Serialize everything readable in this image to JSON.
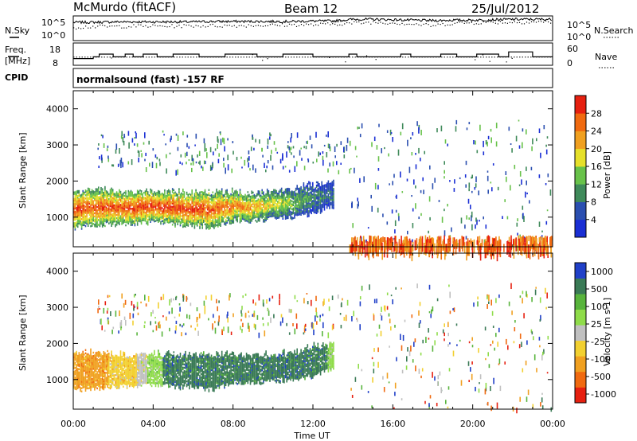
{
  "header": {
    "station": "McMurdo (fitACF)",
    "beam": "Beam 12",
    "date": "25/Jul/2012"
  },
  "top_panels": {
    "nsky_label": "N.Sky",
    "nsearch_label": "N.Search",
    "noise_ticks": [
      "10^5",
      "10^0"
    ],
    "freq_label_line1": "Freq.",
    "freq_label_line2": "[MHz]",
    "freq_ticks": [
      "18",
      "8"
    ],
    "nave_label": "Nave",
    "nave_ticks": [
      "60",
      "0"
    ],
    "cpid_label": "CPID",
    "cpid_value": "normalsound (fast) -157 RF"
  },
  "colors": {
    "power_scale": [
      "#1a2fd4",
      "#2b4fb0",
      "#3f8a5a",
      "#68c24a",
      "#e6e02a",
      "#f0a020",
      "#f06a10",
      "#e62010"
    ],
    "velocity_scale": [
      "#2040c8",
      "#3a7a56",
      "#58b43c",
      "#8fdc4a",
      "#c0c0c0",
      "#f2d030",
      "#f0a020",
      "#f06a10",
      "#e62010"
    ]
  },
  "chart_data": [
    {
      "type": "line",
      "name": "noise",
      "series": [
        {
          "name": "N.Sky",
          "values_log10": [
            3.9,
            3.9,
            4.0,
            4.0,
            4.0,
            4.0,
            4.0,
            4.1,
            4.1,
            4.1,
            4.1,
            4.1,
            4.2,
            4.2,
            4.6,
            4.6,
            4.5,
            4.4,
            4.3,
            4.4,
            4.4,
            4.5,
            4.6,
            4.6,
            4.6
          ]
        },
        {
          "name": "N.Search",
          "values_log10": [
            2.8,
            3.0,
            3.0,
            3.1,
            3.1,
            3.1,
            3.2,
            3.2,
            3.2,
            3.3,
            3.3,
            3.4,
            3.4,
            3.6,
            3.8,
            4.0,
            3.9,
            3.6,
            3.2,
            3.8,
            3.9,
            4.0,
            4.0,
            4.1,
            4.1
          ]
        }
      ],
      "yticks": [
        "10^5",
        "10^0"
      ]
    },
    {
      "type": "line",
      "name": "frequency-nave",
      "x_hours": [
        0,
        1,
        1.3,
        2,
        2.6,
        3,
        3.5,
        4.2,
        5,
        6.3,
        7.6,
        9.2,
        10.5,
        12,
        13.8,
        14.2,
        16.4,
        16.9,
        18.4,
        19.2,
        20.2,
        21.3,
        21.8,
        23,
        24
      ],
      "series": [
        {
          "name": "Freq",
          "values": [
            11,
            11.8,
            13,
            11.8,
            13,
            11.8,
            13,
            11.8,
            13,
            11.8,
            13,
            11.8,
            13,
            11.8,
            13,
            11.8,
            13,
            11.8,
            13,
            11.8,
            13,
            11.8,
            14,
            11.8,
            11.8
          ]
        },
        {
          "name": "Nave",
          "values": [
            22,
            22,
            22,
            22,
            22,
            22,
            22,
            22,
            22,
            22,
            22,
            22,
            22,
            22,
            22,
            22,
            22,
            22,
            22,
            22,
            22,
            22,
            22,
            22,
            22
          ]
        }
      ],
      "ylim_freq": [
        8,
        18
      ],
      "ylim_nave": [
        0,
        60
      ]
    },
    {
      "type": "heatmap",
      "name": "power",
      "title": "",
      "xlabel": "",
      "ylabel": "Slant Range [km]",
      "xlim": [
        0,
        24
      ],
      "ylim": [
        180,
        4500
      ],
      "yticks": [
        1000,
        2000,
        3000,
        4000
      ],
      "colorbar_label": "Power [dB]",
      "colorbar_ticks": [
        "4",
        "8",
        "12",
        "16",
        "20",
        "24",
        "28"
      ],
      "colorbar_range": [
        0,
        30
      ],
      "main_band": {
        "x_hours": [
          0,
          1,
          2,
          3,
          4,
          5,
          6,
          7,
          8,
          9,
          10,
          11,
          12,
          13
        ],
        "bottom_km": [
          700,
          750,
          800,
          820,
          850,
          800,
          750,
          720,
          900,
          900,
          950,
          1000,
          1100,
          1300
        ],
        "top_km": [
          1700,
          1750,
          1700,
          1650,
          1700,
          1700,
          1650,
          1700,
          1700,
          1650,
          1700,
          1750,
          1900,
          2000
        ],
        "peak_power_db": [
          28,
          26,
          27,
          28,
          28,
          28,
          28,
          26,
          24,
          22,
          18,
          14,
          10,
          8
        ]
      },
      "features": [
        {
          "x_hours": [
            1.2,
            13.8
          ],
          "range_km": [
            2300,
            3400
          ],
          "power_db": 6
        },
        {
          "x_hours": [
            13.8,
            24
          ],
          "range_km": [
            200,
            3700
          ],
          "power_db": 8
        },
        {
          "x_hours": [
            13.8,
            24
          ],
          "range_km": [
            200,
            500
          ],
          "power_db": 28
        }
      ]
    },
    {
      "type": "heatmap",
      "name": "velocity",
      "title": "",
      "xlabel": "Time UT",
      "ylabel": "Slant Range [km]",
      "xlim": [
        0,
        24
      ],
      "xticks": [
        "00:00",
        "04:00",
        "08:00",
        "12:00",
        "16:00",
        "20:00",
        "00:00"
      ],
      "ylim": [
        180,
        4500
      ],
      "yticks": [
        1000,
        2000,
        3000,
        4000
      ],
      "colorbar_label": "Velocity [m s-1]",
      "colorbar_ticks": [
        "1000",
        "500",
        "100",
        "25",
        "-25",
        "-100",
        "-500",
        "-1000"
      ],
      "main_band": {
        "x_hours": [
          0,
          1,
          2,
          3,
          4,
          5,
          6,
          7,
          8,
          9,
          10,
          11,
          12,
          13
        ],
        "bottom_km": [
          700,
          750,
          800,
          820,
          850,
          800,
          750,
          720,
          900,
          900,
          950,
          1000,
          1100,
          1300
        ],
        "top_km": [
          1700,
          1750,
          1700,
          1650,
          1700,
          1700,
          1650,
          1700,
          1700,
          1650,
          1700,
          1750,
          1900,
          2000
        ],
        "velocity_ms": [
          -120,
          -150,
          -80,
          -40,
          60,
          150,
          300,
          200,
          150,
          100,
          100,
          120,
          150,
          80
        ]
      },
      "features": [
        {
          "x_hours": [
            1.2,
            13.8
          ],
          "range_km": [
            2300,
            3400
          ],
          "velocity_ms": 100
        },
        {
          "x_hours": [
            13.8,
            24
          ],
          "range_km": [
            200,
            3700
          ],
          "velocity_ms": 0
        }
      ]
    }
  ]
}
